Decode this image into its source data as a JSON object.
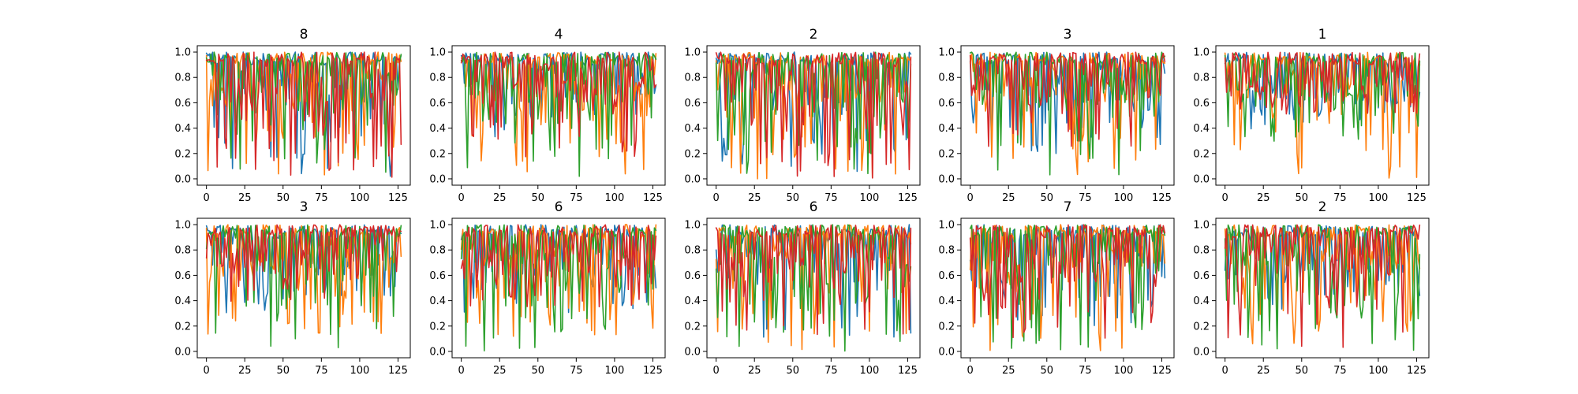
{
  "chart_data": {
    "type": "line",
    "layout": "grid 2 rows x 5 columns",
    "grid": false,
    "legend": "none",
    "xlim": [
      -6,
      133
    ],
    "ylim": [
      -0.05,
      1.05
    ],
    "x_ticks": [
      0,
      25,
      50,
      75,
      100,
      125
    ],
    "y_ticks": [
      0.0,
      0.2,
      0.4,
      0.6,
      0.8,
      1.0
    ],
    "x_tick_labels": [
      "0",
      "25",
      "50",
      "75",
      "100",
      "125"
    ],
    "y_tick_labels": [
      "0.0",
      "0.2",
      "0.4",
      "0.6",
      "0.8",
      "1.0"
    ],
    "series_count": 4,
    "series_colors": [
      "#1f77b4",
      "#ff7f0e",
      "#2ca02c",
      "#d62728"
    ],
    "points_per_series": 128,
    "x_range": [
      0,
      127
    ],
    "note_values": "128 samples per series oscillating between approximately 0 and 1",
    "panels": [
      {
        "title": "8",
        "series_min": [
          0.02,
          0.01,
          0.0,
          0.0
        ]
      },
      {
        "title": "4",
        "series_min": [
          0.3,
          0.02,
          0.0,
          0.15
        ]
      },
      {
        "title": "2",
        "series_min": [
          0.05,
          0.0,
          0.0,
          0.0
        ]
      },
      {
        "title": "3",
        "series_min": [
          0.2,
          0.0,
          0.0,
          0.25
        ]
      },
      {
        "title": "1",
        "series_min": [
          0.35,
          0.0,
          0.25,
          0.5
        ]
      },
      {
        "title": "3",
        "series_min": [
          0.3,
          0.12,
          0.0,
          0.35
        ]
      },
      {
        "title": "6",
        "series_min": [
          0.3,
          0.1,
          0.0,
          0.35
        ]
      },
      {
        "title": "6",
        "series_min": [
          0.1,
          0.0,
          0.0,
          0.1
        ]
      },
      {
        "title": "7",
        "series_min": [
          0.2,
          0.0,
          0.0,
          0.1
        ]
      },
      {
        "title": "2",
        "series_min": [
          0.3,
          0.05,
          0.0,
          0.0
        ]
      }
    ]
  }
}
